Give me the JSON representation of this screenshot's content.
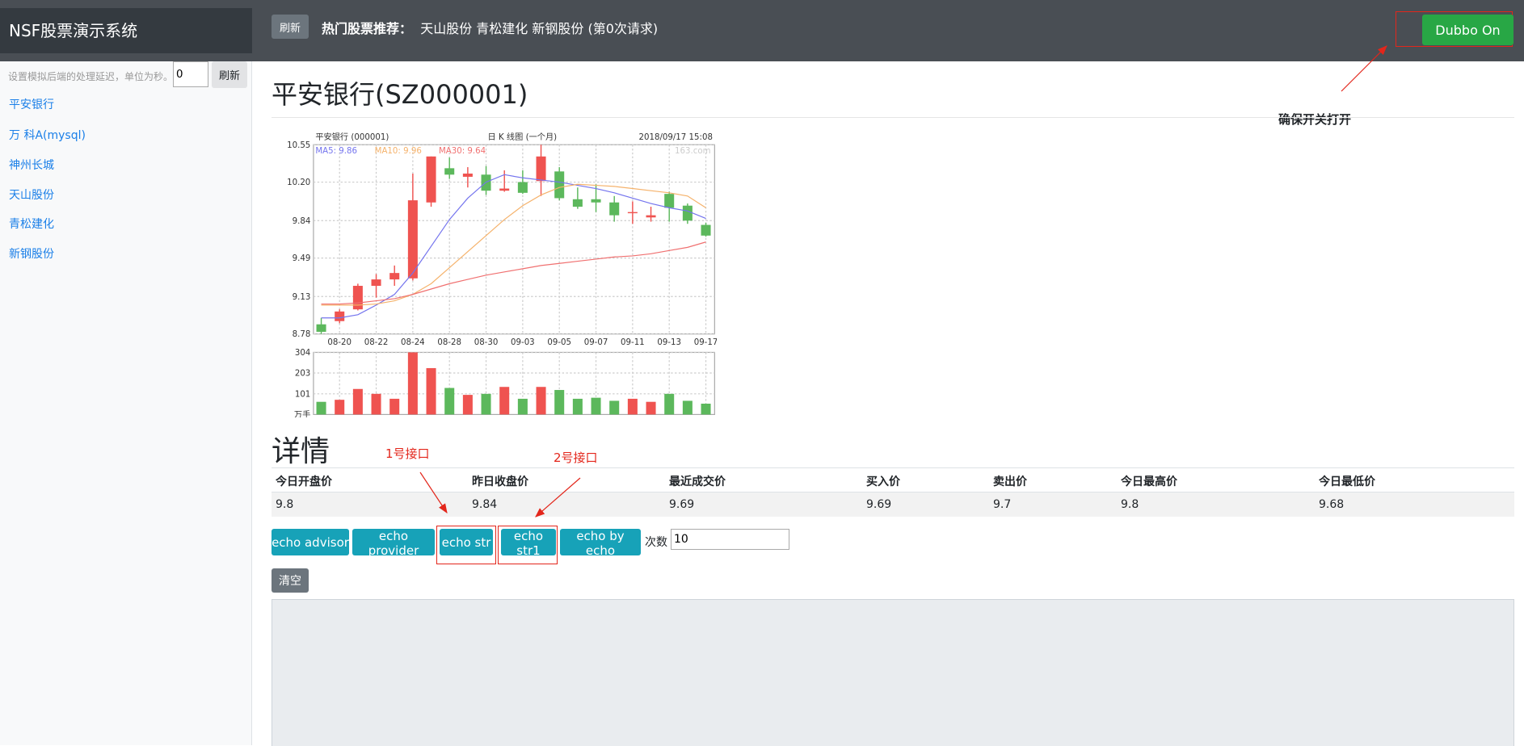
{
  "header": {
    "title": "NSF股票演示系统",
    "refresh": "刷新",
    "hot_label": "热门股票推荐：",
    "hot_stocks": "天山股份 青松建化 新钢股份 (第0次请求)",
    "dubbo": "Dubbo On"
  },
  "annotations": {
    "switch": "确保开关打开",
    "api1": "1号接口",
    "api2": "2号接口"
  },
  "sidebar": {
    "delay_hint": "设置模拟后端的处理延迟，单位为秒。",
    "delay_value": "0",
    "refresh": "刷新",
    "links": [
      "平安银行",
      "万 科A(mysql)",
      "神州长城",
      "天山股份",
      "青松建化",
      "新钢股份"
    ]
  },
  "main": {
    "heading": "平安银行(SZ000001)",
    "details": "详情",
    "table": {
      "headers": [
        "今日开盘价",
        "昨日收盘价",
        "最近成交价",
        "买入价",
        "卖出价",
        "今日最高价",
        "今日最低价"
      ],
      "rows": [
        [
          9.8,
          9.84,
          9.69,
          9.69,
          9.7,
          9.8,
          9.68
        ]
      ]
    },
    "buttons": [
      "echo advisor",
      "echo provider",
      "echo str",
      "echo str1",
      "echo by echo"
    ],
    "count_label": "次数",
    "count_value": "10",
    "clear": "清空"
  },
  "chart_data": {
    "type": "candlestick",
    "title": "平安银行 (000001)",
    "subtitle": "日 K 线图 (一个月)",
    "timestamp": "2018/09/17 15:08",
    "source": "163.com",
    "categories": [
      null,
      "08-20",
      null,
      "08-22",
      null,
      "08-24",
      null,
      "08-28",
      null,
      "08-30",
      null,
      "09-03",
      null,
      "09-05",
      null,
      "09-07",
      null,
      "09-11",
      null,
      "09-13",
      null,
      "09-17"
    ],
    "open": [
      8.87,
      8.9,
      9.01,
      9.23,
      9.29,
      9.3,
      10.01,
      10.33,
      10.25,
      10.27,
      10.12,
      10.2,
      10.21,
      10.3,
      10.04,
      10.04,
      10.01,
      9.91,
      9.87,
      10.09,
      9.98,
      9.8
    ],
    "high": [
      8.93,
      9.01,
      9.25,
      9.34,
      9.42,
      10.28,
      10.44,
      10.43,
      10.34,
      10.35,
      10.31,
      10.31,
      10.55,
      10.34,
      10.15,
      10.18,
      10.07,
      10.02,
      9.97,
      10.11,
      10.0,
      9.82
    ],
    "low": [
      8.78,
      8.88,
      9.0,
      9.12,
      9.23,
      9.28,
      9.97,
      10.23,
      10.15,
      10.08,
      10.11,
      10.09,
      10.07,
      10.03,
      9.95,
      9.92,
      9.83,
      9.81,
      9.83,
      9.83,
      9.81,
      9.69
    ],
    "close": [
      8.8,
      8.99,
      9.23,
      9.29,
      9.35,
      10.03,
      10.44,
      10.27,
      10.28,
      10.12,
      10.14,
      10.1,
      10.44,
      10.05,
      9.97,
      10.01,
      9.89,
      9.92,
      9.89,
      9.96,
      9.84,
      9.7
    ],
    "up_color": "#ef5350",
    "down_color": "#5cb85c",
    "ylim": [
      8.78,
      10.55
    ],
    "yticks": [
      8.78,
      9.13,
      9.49,
      9.84,
      {
        "value": 10.2,
        "label": "10.20"
      },
      10.55
    ],
    "grid": true,
    "lines": [
      {
        "name": "MA5: 9.86",
        "color": "#7474ee",
        "values": [
          8.93,
          8.93,
          8.96,
          9.05,
          9.15,
          9.35,
          9.6,
          9.85,
          10.05,
          10.2,
          10.27,
          10.24,
          10.22,
          10.2,
          10.17,
          10.14,
          10.1,
          10.05,
          10,
          9.96,
          9.93,
          9.86
        ]
      },
      {
        "name": "MA10: 9.96",
        "color": "#f5b26b",
        "values": [
          9.05,
          9.05,
          9.05,
          9.06,
          9.09,
          9.15,
          9.25,
          9.4,
          9.55,
          9.7,
          9.85,
          9.98,
          10.08,
          10.15,
          10.18,
          10.17,
          10.16,
          10.14,
          10.12,
          10.1,
          10.07,
          9.96
        ]
      },
      {
        "name": "MA30: 9.64",
        "color": "#f07070",
        "values": [
          9.06,
          9.06,
          9.07,
          9.09,
          9.11,
          9.15,
          9.2,
          9.25,
          9.29,
          9.33,
          9.36,
          9.39,
          9.42,
          9.44,
          9.46,
          9.48,
          9.5,
          9.51,
          9.53,
          9.56,
          9.59,
          9.64
        ]
      }
    ],
    "volume": {
      "unit": "万手",
      "values": [
        62,
        72,
        125,
        101,
        77,
        304,
        227,
        130,
        96,
        101,
        135,
        77,
        135,
        120,
        77,
        82,
        67,
        77,
        62,
        101,
        67,
        53
      ],
      "ylim": [
        0,
        304
      ],
      "yticks": [
        101,
        203,
        304
      ]
    }
  }
}
